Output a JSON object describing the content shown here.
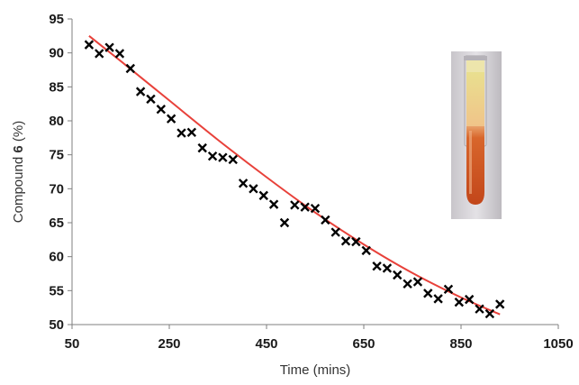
{
  "chart_data": {
    "type": "scatter",
    "xlabel": "Time (mins)",
    "ylabel": {
      "prefix": "Compound ",
      "bold": "6",
      "suffix": " (%)"
    },
    "xlim": [
      50,
      1050
    ],
    "ylim": [
      50,
      95
    ],
    "xticks": [
      50,
      250,
      450,
      650,
      850,
      1050
    ],
    "yticks": [
      50,
      55,
      60,
      65,
      70,
      75,
      80,
      85,
      90,
      95
    ],
    "grid": false,
    "legend": "none",
    "series": [
      {
        "marker": "x",
        "color": "#000000",
        "points": [
          [
            85,
            91.2
          ],
          [
            106,
            89.9
          ],
          [
            127,
            90.8
          ],
          [
            148,
            89.9
          ],
          [
            170,
            87.7
          ],
          [
            191,
            84.3
          ],
          [
            212,
            83.2
          ],
          [
            233,
            81.7
          ],
          [
            254,
            80.3
          ],
          [
            275,
            78.2
          ],
          [
            296,
            78.3
          ],
          [
            318,
            76.0
          ],
          [
            339,
            74.8
          ],
          [
            360,
            74.6
          ],
          [
            381,
            74.3
          ],
          [
            402,
            70.8
          ],
          [
            423,
            70.0
          ],
          [
            444,
            69.0
          ],
          [
            465,
            67.7
          ],
          [
            487,
            65.0
          ],
          [
            508,
            67.6
          ],
          [
            529,
            67.3
          ],
          [
            550,
            67.1
          ],
          [
            571,
            65.4
          ],
          [
            592,
            63.6
          ],
          [
            613,
            62.3
          ],
          [
            634,
            62.2
          ],
          [
            655,
            60.9
          ],
          [
            677,
            58.6
          ],
          [
            698,
            58.3
          ],
          [
            719,
            57.3
          ],
          [
            740,
            56.0
          ],
          [
            761,
            56.3
          ],
          [
            782,
            54.6
          ],
          [
            803,
            53.8
          ],
          [
            824,
            55.2
          ],
          [
            846,
            53.3
          ],
          [
            867,
            53.7
          ],
          [
            888,
            52.3
          ],
          [
            909,
            51.6
          ],
          [
            930,
            53.0
          ]
        ]
      },
      {
        "marker": "none",
        "line": "fit",
        "color": "#e8413a",
        "points": [
          [
            85,
            92.5
          ],
          [
            150,
            88.8
          ],
          [
            250,
            83.0
          ],
          [
            350,
            77.2
          ],
          [
            450,
            71.7
          ],
          [
            550,
            66.5
          ],
          [
            650,
            61.8
          ],
          [
            750,
            57.6
          ],
          [
            850,
            54.0
          ],
          [
            930,
            51.5
          ]
        ]
      }
    ],
    "inset_image": {
      "content": "test tube with orange liquid",
      "colors": [
        "#c9541f",
        "#e6d06a",
        "#d4d2d6"
      ]
    }
  }
}
